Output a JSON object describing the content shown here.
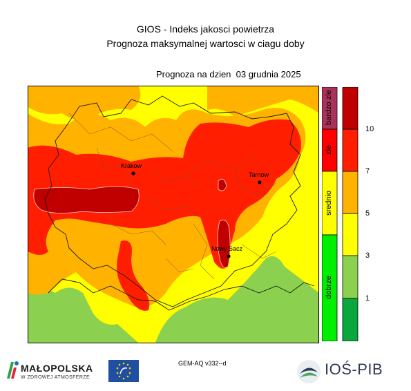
{
  "header": {
    "title_line1": "GIOS - Indeks jakosci powietrza",
    "title_line2": "Prognoza maksymalnej wartosci w ciagu doby",
    "forecast_date": "Prognoza na dzien  03 grudnia 2025"
  },
  "cities": [
    {
      "name": "Krakow"
    },
    {
      "name": "Tarnow"
    },
    {
      "name": "Nowy Sacz"
    }
  ],
  "category_bands": [
    {
      "label": "bardzo zle",
      "color": "#a8325a"
    },
    {
      "label": "zle",
      "color": "#ff0000"
    },
    {
      "label": "srednio",
      "color": "#ffff00"
    },
    {
      "label": "dobrze",
      "color": "#00ee00"
    }
  ],
  "color_scale": {
    "colors": [
      "#0aa63e",
      "#8bd14f",
      "#ffff00",
      "#ffb300",
      "#ff1f00",
      "#c00000"
    ],
    "tick_labels": [
      "1",
      "3",
      "5",
      "7",
      "10"
    ]
  },
  "map_colors": {
    "good": "#8bd14f",
    "moderate_low": "#ffff00",
    "moderate_high": "#ffb300",
    "bad": "#ff1f00",
    "very_bad": "#c00000"
  },
  "footer": {
    "model": "GEM-AQ v332--d",
    "logo_left_title": "MAŁOPOLSKA",
    "logo_left_subtitle": "W ZDROWEJ ATMOSFERZE",
    "logo_right": "IOŚ-PIB"
  }
}
